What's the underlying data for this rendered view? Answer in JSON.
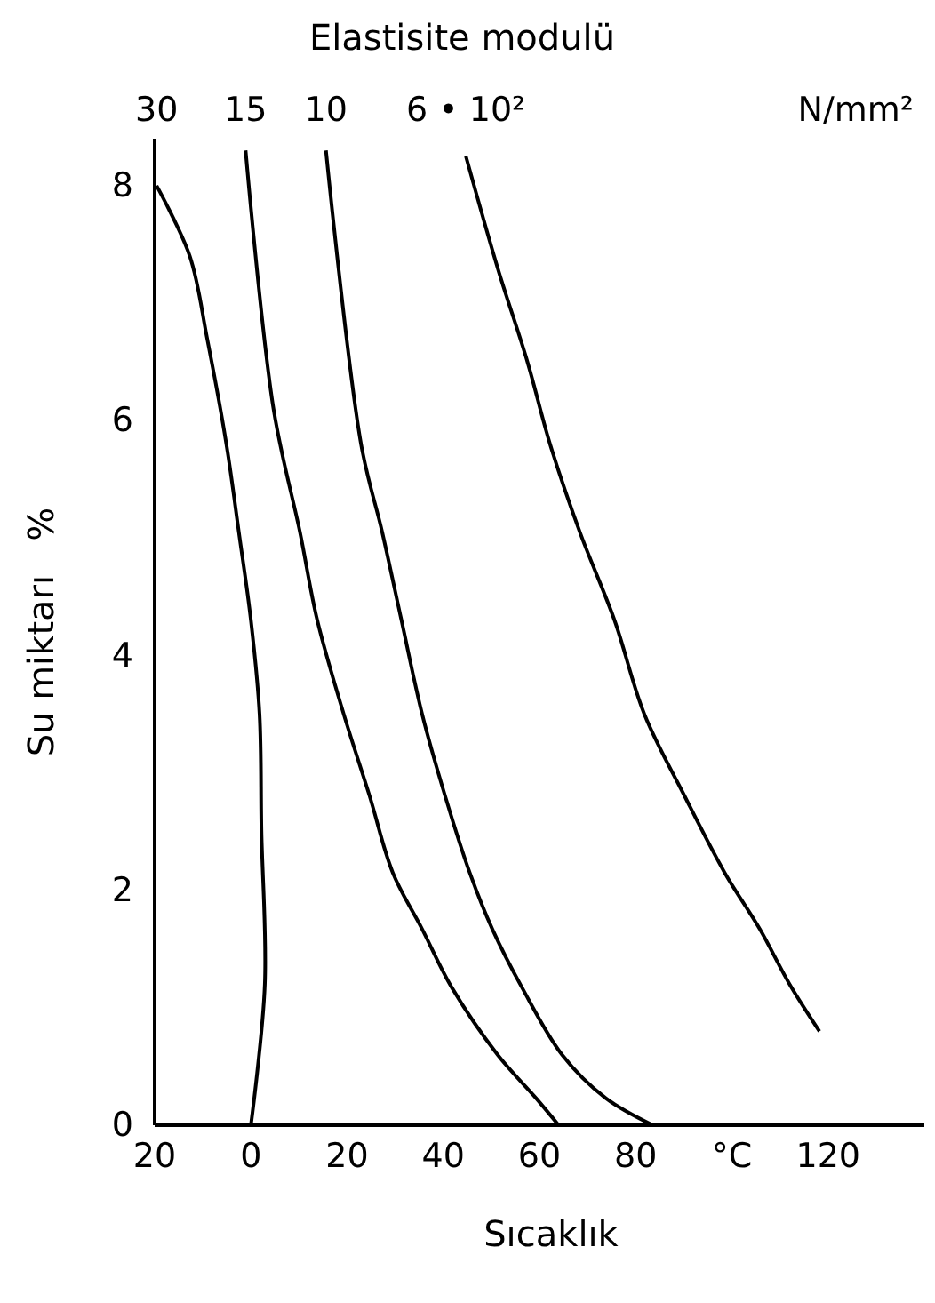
{
  "chart_data": {
    "type": "line",
    "title": "Elastisite modulü",
    "xlabel": "Sıcaklık",
    "ylabel": "Su miktarı   %",
    "annotations": [
      "N/mm²"
    ],
    "xlim": [
      -20,
      140
    ],
    "xticks": [
      {
        "value": -20,
        "label": "20"
      },
      0,
      20,
      40,
      60,
      80,
      {
        "value": 100,
        "label": "°C"
      },
      120
    ],
    "ylim": [
      0,
      8.4
    ],
    "yticks": [
      0,
      2,
      4,
      6,
      8
    ],
    "grid": false,
    "series": [
      {
        "name": "30",
        "color": "#000000",
        "x": [
          -19.6,
          -12.7,
          -9.1,
          -5.1,
          -2.5,
          0,
          1.8,
          2.2,
          2.9,
          0
        ],
        "values": [
          8.0,
          7.4,
          6.7,
          5.8,
          5.05,
          4.3,
          3.5,
          2.5,
          1.2,
          0
        ]
      },
      {
        "name": "15",
        "color": "#000000",
        "x": [
          -1.1,
          4.7,
          10.2,
          13.8,
          19.3,
          24.7,
          29.5,
          35.6,
          41.8,
          51.3,
          59.3,
          64
        ],
        "values": [
          8.3,
          6.1,
          5.05,
          4.3,
          3.5,
          2.8,
          2.15,
          1.67,
          1.17,
          0.6,
          0.23,
          0
        ]
      },
      {
        "name": "10",
        "color": "#000000",
        "x": [
          15.6,
          22.9,
          27.3,
          31.3,
          35.6,
          40.4,
          45.5,
          50.2,
          56.4,
          64.7,
          73.8,
          83.6
        ],
        "values": [
          8.3,
          5.8,
          5.05,
          4.3,
          3.5,
          2.8,
          2.15,
          1.67,
          1.17,
          0.6,
          0.23,
          0
        ]
      },
      {
        "name": "6 • 10²",
        "color": "#000000",
        "x": [
          44.7,
          51.3,
          57.5,
          62.2,
          68.4,
          75.6,
          81.8,
          90.2,
          98.5,
          105.8,
          112,
          118.2
        ],
        "values": [
          8.25,
          7.3,
          6.5,
          5.8,
          5.05,
          4.3,
          3.5,
          2.8,
          2.15,
          1.67,
          1.2,
          0.8
        ]
      }
    ]
  }
}
